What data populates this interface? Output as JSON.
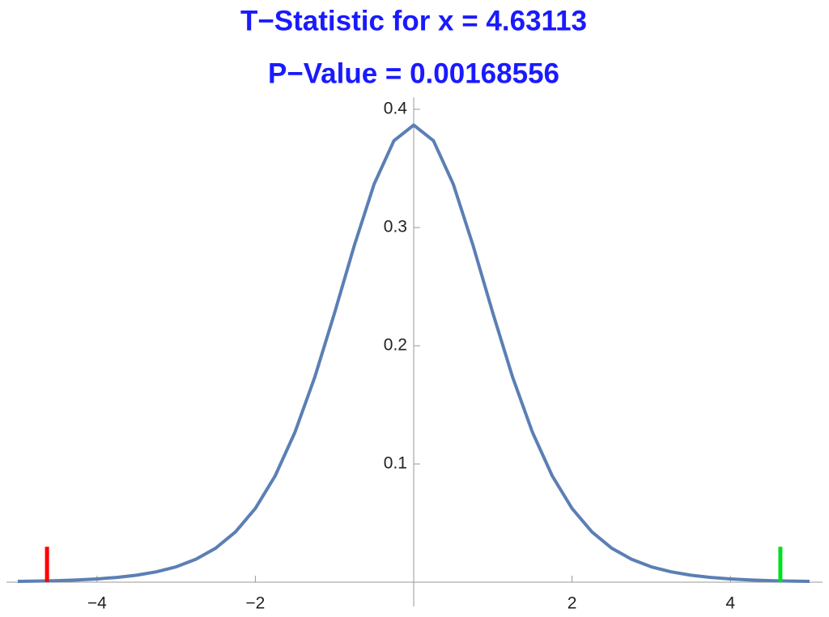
{
  "chart_data": {
    "type": "line",
    "title": [
      "T−Statistic for x = 4.63113",
      "P−Value = 0.00168556"
    ],
    "x": [
      -5,
      -4.75,
      -4.5,
      -4.25,
      -4,
      -3.75,
      -3.5,
      -3.25,
      -3,
      -2.75,
      -2.5,
      -2.25,
      -2,
      -1.75,
      -1.5,
      -1.25,
      -1,
      -0.75,
      -0.5,
      -0.25,
      0,
      0.25,
      0.5,
      0.75,
      1,
      1.25,
      1.5,
      1.75,
      2,
      2.25,
      2.5,
      2.75,
      3,
      3.25,
      3.5,
      3.75,
      4,
      4.25,
      4.5,
      4.75,
      5
    ],
    "series": [
      {
        "color": "#5b7fb4",
        "values": [
          0.00066,
          0.00093,
          0.00132,
          0.0019,
          0.00276,
          0.00402,
          0.00592,
          0.00876,
          0.013,
          0.0194,
          0.0288,
          0.0426,
          0.0624,
          0.0899,
          0.1268,
          0.1733,
          0.2276,
          0.2848,
          0.3367,
          0.3734,
          0.3867,
          0.3734,
          0.3367,
          0.2848,
          0.2276,
          0.1733,
          0.1268,
          0.0899,
          0.0624,
          0.0426,
          0.0288,
          0.0194,
          0.013,
          0.00876,
          0.00592,
          0.00402,
          0.00276,
          0.0019,
          0.00132,
          0.00093,
          0.00066
        ]
      }
    ],
    "markers": [
      {
        "x": -4.63113,
        "height": 0.03,
        "color": "#ff0000"
      },
      {
        "x": 4.63113,
        "height": 0.03,
        "color": "#00e020"
      }
    ],
    "xlim": [
      -5,
      5
    ],
    "ylim": [
      0,
      0.41
    ],
    "xticks": [
      {
        "value": -4,
        "label": "−4"
      },
      {
        "value": -2,
        "label": "−2"
      },
      2,
      4
    ],
    "yticks": [
      0.1,
      0.2,
      0.3,
      0.4
    ]
  }
}
